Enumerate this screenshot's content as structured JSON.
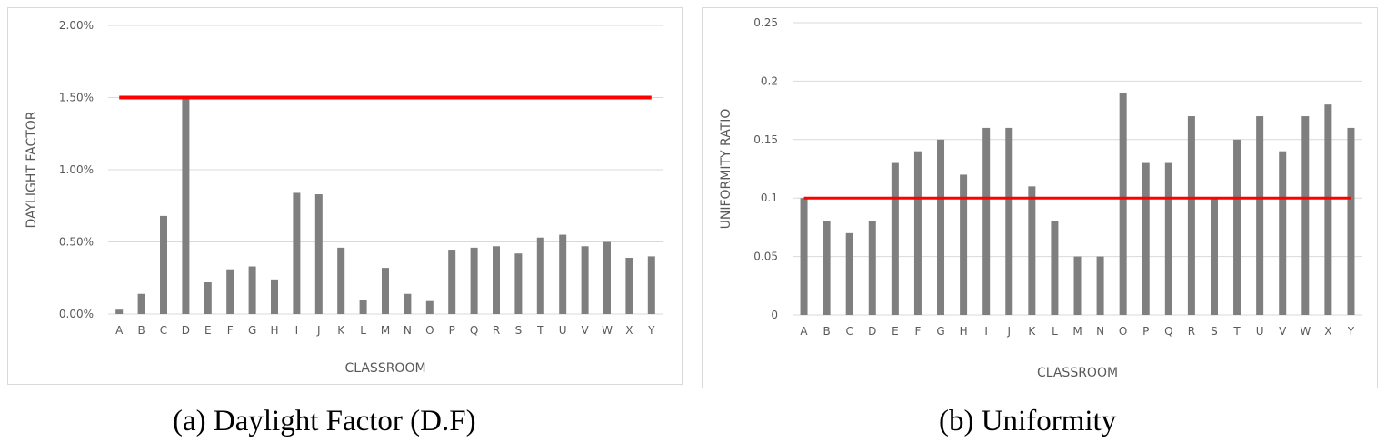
{
  "captions": {
    "a": "(a) Daylight Factor (D.F)",
    "b": "(b) Uniformity"
  },
  "chart_data": [
    {
      "type": "bar",
      "title": "",
      "xlabel": "CLASSROOM",
      "ylabel": "DAYLIGHT FACTOR",
      "categories": [
        "A",
        "B",
        "C",
        "D",
        "E",
        "F",
        "G",
        "H",
        "I",
        "J",
        "K",
        "L",
        "M",
        "N",
        "O",
        "P",
        "Q",
        "R",
        "S",
        "T",
        "U",
        "V",
        "W",
        "X",
        "Y"
      ],
      "values": [
        0.03,
        0.14,
        0.68,
        1.5,
        0.22,
        0.31,
        0.33,
        0.24,
        0.84,
        0.83,
        0.46,
        0.1,
        0.32,
        0.14,
        0.09,
        0.44,
        0.46,
        0.47,
        0.42,
        0.53,
        0.55,
        0.47,
        0.5,
        0.39,
        0.4
      ],
      "ylim": [
        0,
        2.0
      ],
      "yticks": [
        0,
        0.5,
        1.0,
        1.5,
        2.0
      ],
      "ytick_labels": [
        "0.00%",
        "0.50%",
        "1.00%",
        "1.50%",
        "2.00%"
      ],
      "threshold": 1.5,
      "bar_color": "#7f7f7f",
      "threshold_color": "#ff0000",
      "grid": true
    },
    {
      "type": "bar",
      "title": "",
      "xlabel": "CLASSROOM",
      "ylabel": "UNIFORMITY RATIO",
      "categories": [
        "A",
        "B",
        "C",
        "D",
        "E",
        "F",
        "G",
        "H",
        "I",
        "J",
        "K",
        "L",
        "M",
        "N",
        "O",
        "P",
        "Q",
        "R",
        "S",
        "T",
        "U",
        "V",
        "W",
        "X",
        "Y"
      ],
      "values": [
        0.1,
        0.08,
        0.07,
        0.08,
        0.13,
        0.14,
        0.15,
        0.12,
        0.16,
        0.16,
        0.11,
        0.08,
        0.05,
        0.05,
        0.19,
        0.13,
        0.13,
        0.17,
        0.1,
        0.15,
        0.17,
        0.14,
        0.17,
        0.18,
        0.16
      ],
      "ylim": [
        0,
        0.25
      ],
      "yticks": [
        0,
        0.05,
        0.1,
        0.15,
        0.2,
        0.25
      ],
      "ytick_labels": [
        "0",
        "0.05",
        "0.1",
        "0.15",
        "0.2",
        "0.25"
      ],
      "threshold": 0.1,
      "bar_color": "#7f7f7f",
      "threshold_color": "#ff0000",
      "grid": true
    }
  ]
}
